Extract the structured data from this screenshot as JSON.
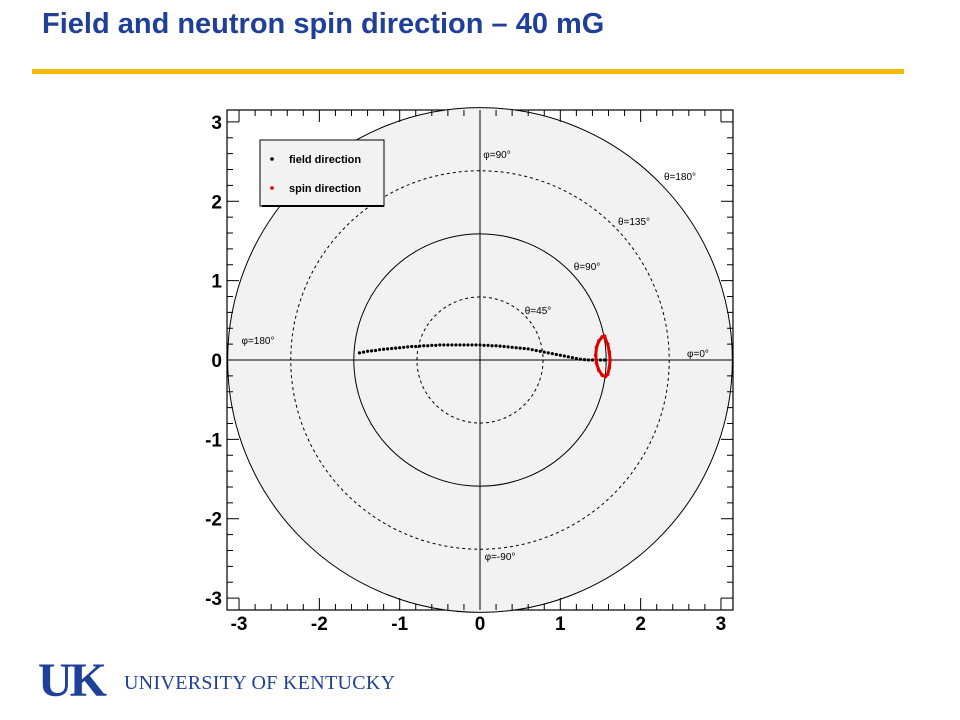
{
  "slide": {
    "title": "Field and neutron spin direction – 40 mG"
  },
  "colors": {
    "title": "#1f3f99",
    "rule": "#f5b800",
    "plot_fill": "#f2f2f2",
    "spin": "#e00000",
    "field": "#000000",
    "logo": "#1f3f99"
  },
  "logo": {
    "mark": "UK",
    "text": "UNIVERSITY OF KENTUCKY"
  },
  "chart_data": {
    "type": "scatter",
    "title": "",
    "xlabel": "",
    "ylabel": "",
    "xlim": [
      -3.15,
      3.15
    ],
    "ylim": [
      -3.15,
      3.15
    ],
    "x_ticks": [
      -3,
      -2,
      -1,
      0,
      1,
      2,
      3
    ],
    "y_ticks": [
      -3,
      -2,
      -1,
      0,
      1,
      2,
      3
    ],
    "legend": {
      "placement": "top-left",
      "entries": [
        "field direction",
        "spin direction"
      ]
    },
    "polar_grid": {
      "theta_circles": [
        {
          "radius": 0.785,
          "label": "θ=45°",
          "style": "dashed"
        },
        {
          "radius": 1.571,
          "label": "θ=90°",
          "style": "solid"
        },
        {
          "radius": 2.356,
          "label": "θ=135°",
          "style": "dashed"
        },
        {
          "radius": 3.142,
          "label": "θ=180°",
          "style": "solid"
        }
      ],
      "phi_labels": [
        "φ=0°",
        "φ=90°",
        "φ=180°",
        "φ=-90°"
      ]
    },
    "series": [
      {
        "name": "field direction",
        "x": [
          -1.5,
          -1.45,
          -1.4,
          -1.35,
          -1.3,
          -1.25,
          -1.2,
          -1.15,
          -1.1,
          -1.05,
          -1.0,
          -0.95,
          -0.9,
          -0.85,
          -0.8,
          -0.75,
          -0.7,
          -0.65,
          -0.6,
          -0.55,
          -0.5,
          -0.45,
          -0.4,
          -0.35,
          -0.3,
          -0.25,
          -0.2,
          -0.15,
          -0.1,
          -0.05,
          0.0,
          0.05,
          0.1,
          0.15,
          0.2,
          0.25,
          0.3,
          0.35,
          0.4,
          0.45,
          0.5,
          0.55,
          0.6,
          0.65,
          0.7,
          0.75,
          0.8,
          0.85,
          0.9,
          0.95,
          1.0,
          1.05,
          1.1,
          1.15,
          1.2,
          1.25,
          1.3,
          1.35,
          1.4,
          1.45,
          1.5,
          1.55
        ],
        "y": [
          0.09,
          0.1,
          0.11,
          0.115,
          0.12,
          0.13,
          0.135,
          0.14,
          0.145,
          0.15,
          0.155,
          0.16,
          0.165,
          0.17,
          0.17,
          0.175,
          0.18,
          0.18,
          0.185,
          0.185,
          0.19,
          0.19,
          0.19,
          0.19,
          0.19,
          0.19,
          0.19,
          0.19,
          0.19,
          0.19,
          0.19,
          0.185,
          0.185,
          0.18,
          0.18,
          0.175,
          0.17,
          0.165,
          0.16,
          0.155,
          0.15,
          0.145,
          0.14,
          0.13,
          0.12,
          0.11,
          0.1,
          0.09,
          0.08,
          0.07,
          0.06,
          0.05,
          0.04,
          0.03,
          0.02,
          0.01,
          0.005,
          0.0,
          0.0,
          0.0,
          0.0,
          0.0
        ]
      },
      {
        "name": "spin direction",
        "x": [
          1.55,
          1.52,
          1.48,
          1.45,
          1.44,
          1.45,
          1.48,
          1.52,
          1.56,
          1.59,
          1.61,
          1.62,
          1.61,
          1.59,
          1.56,
          1.55
        ],
        "y": [
          0.3,
          0.29,
          0.24,
          0.16,
          0.06,
          -0.04,
          -0.13,
          -0.19,
          -0.21,
          -0.18,
          -0.1,
          0.0,
          0.1,
          0.2,
          0.27,
          0.3
        ]
      }
    ]
  }
}
